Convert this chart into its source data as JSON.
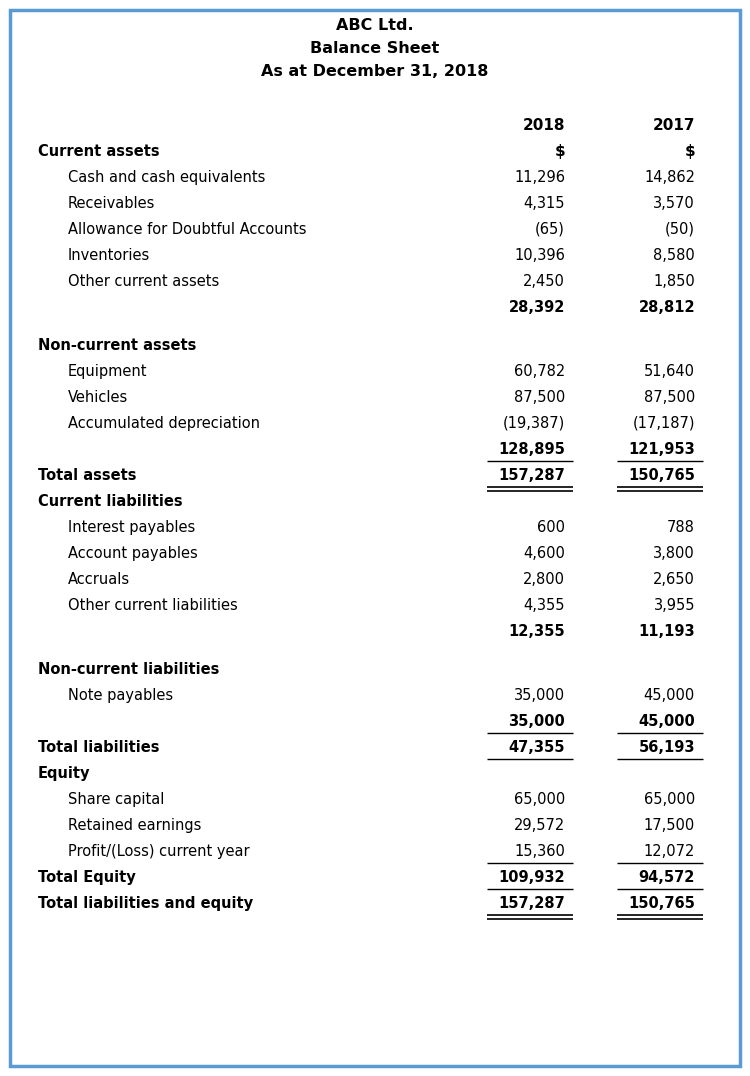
{
  "title_lines": [
    "ABC Ltd.",
    "Balance Sheet",
    "As at December 31, 2018"
  ],
  "rows": [
    {
      "label": "Current assets",
      "v2018": "",
      "v2017": "",
      "indent": 0,
      "bold": true,
      "underline": false,
      "double_underline": false,
      "spacer_before": false,
      "spacer_after": false
    },
    {
      "label": "Cash and cash equivalents",
      "v2018": "11,296",
      "v2017": "14,862",
      "indent": 1,
      "bold": false,
      "underline": false,
      "double_underline": false,
      "spacer_before": false,
      "spacer_after": false
    },
    {
      "label": "Receivables",
      "v2018": "4,315",
      "v2017": "3,570",
      "indent": 1,
      "bold": false,
      "underline": false,
      "double_underline": false,
      "spacer_before": false,
      "spacer_after": false
    },
    {
      "label": "Allowance for Doubtful Accounts",
      "v2018": "(65)",
      "v2017": "(50)",
      "indent": 1,
      "bold": false,
      "underline": false,
      "double_underline": false,
      "spacer_before": false,
      "spacer_after": false
    },
    {
      "label": "Inventories",
      "v2018": "10,396",
      "v2017": "8,580",
      "indent": 1,
      "bold": false,
      "underline": false,
      "double_underline": false,
      "spacer_before": false,
      "spacer_after": false
    },
    {
      "label": "Other current assets",
      "v2018": "2,450",
      "v2017": "1,850",
      "indent": 1,
      "bold": false,
      "underline": false,
      "double_underline": false,
      "spacer_before": false,
      "spacer_after": false
    },
    {
      "label": "",
      "v2018": "28,392",
      "v2017": "28,812",
      "indent": 1,
      "bold": true,
      "underline": false,
      "double_underline": false,
      "spacer_before": false,
      "spacer_after": true
    },
    {
      "label": "Non-current assets",
      "v2018": "",
      "v2017": "",
      "indent": 0,
      "bold": true,
      "underline": false,
      "double_underline": false,
      "spacer_before": false,
      "spacer_after": false
    },
    {
      "label": "Equipment",
      "v2018": "60,782",
      "v2017": "51,640",
      "indent": 1,
      "bold": false,
      "underline": false,
      "double_underline": false,
      "spacer_before": false,
      "spacer_after": false
    },
    {
      "label": "Vehicles",
      "v2018": "87,500",
      "v2017": "87,500",
      "indent": 1,
      "bold": false,
      "underline": false,
      "double_underline": false,
      "spacer_before": false,
      "spacer_after": false
    },
    {
      "label": "Accumulated depreciation",
      "v2018": "(19,387)",
      "v2017": "(17,187)",
      "indent": 1,
      "bold": false,
      "underline": false,
      "double_underline": false,
      "spacer_before": false,
      "spacer_after": false
    },
    {
      "label": "",
      "v2018": "128,895",
      "v2017": "121,953",
      "indent": 1,
      "bold": true,
      "underline": true,
      "double_underline": false,
      "spacer_before": false,
      "spacer_after": false
    },
    {
      "label": "Total assets",
      "v2018": "157,287",
      "v2017": "150,765",
      "indent": 0,
      "bold": true,
      "underline": false,
      "double_underline": true,
      "spacer_before": false,
      "spacer_after": false
    },
    {
      "label": "Current liabilities",
      "v2018": "",
      "v2017": "",
      "indent": 0,
      "bold": true,
      "underline": false,
      "double_underline": false,
      "spacer_before": false,
      "spacer_after": false
    },
    {
      "label": "Interest payables",
      "v2018": "600",
      "v2017": "788",
      "indent": 1,
      "bold": false,
      "underline": false,
      "double_underline": false,
      "spacer_before": false,
      "spacer_after": false
    },
    {
      "label": "Account payables",
      "v2018": "4,600",
      "v2017": "3,800",
      "indent": 1,
      "bold": false,
      "underline": false,
      "double_underline": false,
      "spacer_before": false,
      "spacer_after": false
    },
    {
      "label": "Accruals",
      "v2018": "2,800",
      "v2017": "2,650",
      "indent": 1,
      "bold": false,
      "underline": false,
      "double_underline": false,
      "spacer_before": false,
      "spacer_after": false
    },
    {
      "label": "Other current liabilities",
      "v2018": "4,355",
      "v2017": "3,955",
      "indent": 1,
      "bold": false,
      "underline": false,
      "double_underline": false,
      "spacer_before": false,
      "spacer_after": false
    },
    {
      "label": "",
      "v2018": "12,355",
      "v2017": "11,193",
      "indent": 1,
      "bold": true,
      "underline": false,
      "double_underline": false,
      "spacer_before": false,
      "spacer_after": true
    },
    {
      "label": "Non-current liabilities",
      "v2018": "",
      "v2017": "",
      "indent": 0,
      "bold": true,
      "underline": false,
      "double_underline": false,
      "spacer_before": false,
      "spacer_after": false
    },
    {
      "label": "Note payables",
      "v2018": "35,000",
      "v2017": "45,000",
      "indent": 1,
      "bold": false,
      "underline": false,
      "double_underline": false,
      "spacer_before": false,
      "spacer_after": false
    },
    {
      "label": "",
      "v2018": "35,000",
      "v2017": "45,000",
      "indent": 1,
      "bold": true,
      "underline": true,
      "double_underline": false,
      "spacer_before": false,
      "spacer_after": false
    },
    {
      "label": "Total liabilities",
      "v2018": "47,355",
      "v2017": "56,193",
      "indent": 0,
      "bold": true,
      "underline": true,
      "double_underline": false,
      "spacer_before": false,
      "spacer_after": false
    },
    {
      "label": "Equity",
      "v2018": "",
      "v2017": "",
      "indent": 0,
      "bold": true,
      "underline": false,
      "double_underline": false,
      "spacer_before": false,
      "spacer_after": false
    },
    {
      "label": "Share capital",
      "v2018": "65,000",
      "v2017": "65,000",
      "indent": 1,
      "bold": false,
      "underline": false,
      "double_underline": false,
      "spacer_before": false,
      "spacer_after": false
    },
    {
      "label": "Retained earnings",
      "v2018": "29,572",
      "v2017": "17,500",
      "indent": 1,
      "bold": false,
      "underline": false,
      "double_underline": false,
      "spacer_before": false,
      "spacer_after": false
    },
    {
      "label": "Profit/(Loss) current year",
      "v2018": "15,360",
      "v2017": "12,072",
      "indent": 1,
      "bold": false,
      "underline": true,
      "double_underline": false,
      "spacer_before": false,
      "spacer_after": false
    },
    {
      "label": "Total Equity",
      "v2018": "109,932",
      "v2017": "94,572",
      "indent": 0,
      "bold": true,
      "underline": true,
      "double_underline": false,
      "spacer_before": false,
      "spacer_after": false
    },
    {
      "label": "Total liabilities and equity",
      "v2018": "157,287",
      "v2017": "150,765",
      "indent": 0,
      "bold": true,
      "underline": false,
      "double_underline": true,
      "spacer_before": false,
      "spacer_after": false
    }
  ],
  "border_color": "#5b9bd5",
  "bg_color": "#ffffff",
  "text_color": "#000000",
  "font_size": 10.5,
  "title_font_size": 11.5
}
